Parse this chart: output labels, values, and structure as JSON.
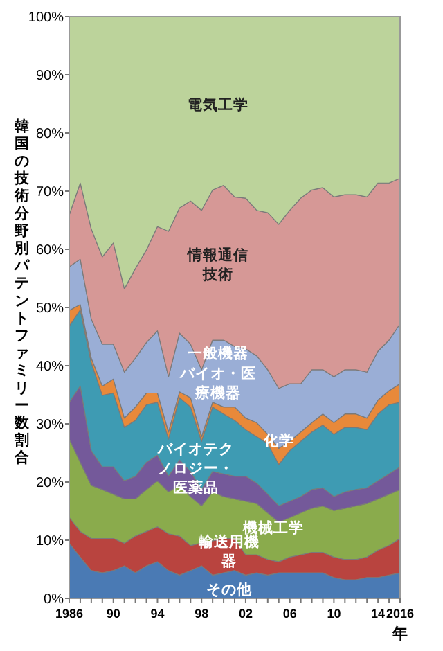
{
  "chart_data": {
    "type": "area",
    "stacked": true,
    "legend": false,
    "ylabel": "韓国の技術分野別パテントファミリー数割合",
    "xlabel": "年",
    "x": [
      1986,
      1987,
      1988,
      1989,
      1990,
      1991,
      1992,
      1993,
      1994,
      1995,
      1996,
      1997,
      1998,
      1999,
      2000,
      2001,
      2002,
      2003,
      2004,
      2005,
      2006,
      2007,
      2008,
      2009,
      2010,
      2011,
      2012,
      2013,
      2014,
      2015,
      2016
    ],
    "xlim": [
      1986,
      2016
    ],
    "xticks": [
      {
        "value": 1986,
        "label": "1986"
      },
      {
        "value": 1987,
        "label": null
      },
      {
        "value": 1988,
        "label": null
      },
      {
        "value": 1989,
        "label": null
      },
      {
        "value": 1990,
        "label": "90"
      },
      {
        "value": 1991,
        "label": null
      },
      {
        "value": 1992,
        "label": null
      },
      {
        "value": 1993,
        "label": null
      },
      {
        "value": 1994,
        "label": "94"
      },
      {
        "value": 1995,
        "label": null
      },
      {
        "value": 1996,
        "label": null
      },
      {
        "value": 1997,
        "label": null
      },
      {
        "value": 1998,
        "label": "98"
      },
      {
        "value": 1999,
        "label": null
      },
      {
        "value": 2000,
        "label": null
      },
      {
        "value": 2001,
        "label": null
      },
      {
        "value": 2002,
        "label": "02"
      },
      {
        "value": 2003,
        "label": null
      },
      {
        "value": 2004,
        "label": null
      },
      {
        "value": 2005,
        "label": null
      },
      {
        "value": 2006,
        "label": "06"
      },
      {
        "value": 2007,
        "label": null
      },
      {
        "value": 2008,
        "label": null
      },
      {
        "value": 2009,
        "label": null
      },
      {
        "value": 2010,
        "label": "10"
      },
      {
        "value": 2011,
        "label": null
      },
      {
        "value": 2012,
        "label": null
      },
      {
        "value": 2013,
        "label": null
      },
      {
        "value": 2014,
        "label": "14"
      },
      {
        "value": 2015,
        "label": null
      },
      {
        "value": 2016,
        "label": "2016"
      }
    ],
    "ylim": [
      0,
      100
    ],
    "yticks": [
      {
        "value": 0,
        "label": "0%"
      },
      {
        "value": 10,
        "label": "10%"
      },
      {
        "value": 20,
        "label": "20%"
      },
      {
        "value": 30,
        "label": "30%"
      },
      {
        "value": 40,
        "label": "40%"
      },
      {
        "value": 50,
        "label": "50%"
      },
      {
        "value": 60,
        "label": "60%"
      },
      {
        "value": 70,
        "label": "70%"
      },
      {
        "value": 80,
        "label": "80%"
      },
      {
        "value": 90,
        "label": "90%"
      },
      {
        "value": 100,
        "label": "100%"
      }
    ],
    "series": [
      {
        "name": "その他",
        "color": "#4a7ab4",
        "values": [
          9.5,
          7.1,
          4.8,
          4.4,
          4.8,
          5.6,
          4.4,
          5.6,
          6.3,
          4.8,
          4.0,
          4.8,
          5.6,
          4.0,
          4.4,
          4.8,
          4.0,
          4.4,
          4.0,
          4.4,
          4.4,
          4.4,
          4.4,
          4.4,
          3.6,
          3.2,
          3.2,
          3.6,
          3.6,
          4.0,
          4.4
        ]
      },
      {
        "name": "輸送用機器",
        "color": "#b9443f",
        "values": [
          4.4,
          4.4,
          5.5,
          5.9,
          5.5,
          3.9,
          6.3,
          5.9,
          6.0,
          6.3,
          6.7,
          4.3,
          3.9,
          5.9,
          5.9,
          5.5,
          3.5,
          3.1,
          2.7,
          1.9,
          2.7,
          3.1,
          3.5,
          3.5,
          3.5,
          3.5,
          3.5,
          3.5,
          4.7,
          5.1,
          5.9
        ]
      },
      {
        "name": "機械工学",
        "color": "#8aab4c",
        "values": [
          13.5,
          11.9,
          9.1,
          8.4,
          7.6,
          7.6,
          6.4,
          7.2,
          7.9,
          7.2,
          8.7,
          8.4,
          6.4,
          8.4,
          7.2,
          6.8,
          9.2,
          8.8,
          8.0,
          6.8,
          6.8,
          7.2,
          7.6,
          8.0,
          8.0,
          8.8,
          9.2,
          9.2,
          8.8,
          8.8,
          8.4
        ]
      },
      {
        "name": "バイオテクノロジー・医薬品",
        "color": "#74599a",
        "values": [
          6.3,
          13.1,
          6.0,
          3.9,
          4.7,
          3.1,
          3.9,
          4.7,
          4.4,
          2.7,
          4.4,
          4.3,
          2.8,
          3.5,
          3.9,
          3.9,
          4.3,
          3.5,
          3.2,
          2.8,
          2.8,
          2.8,
          3.2,
          3.1,
          2.4,
          2.8,
          2.8,
          2.7,
          3.1,
          3.5,
          3.9
        ]
      },
      {
        "name": "化学",
        "color": "#3e9bb3",
        "values": [
          13.1,
          13.1,
          15.1,
          12.3,
          12.7,
          9.2,
          9.6,
          9.9,
          9.1,
          6.4,
          10.7,
          11.1,
          8.3,
          11.1,
          10.3,
          9.6,
          8.0,
          8.0,
          8.7,
          7.1,
          8.7,
          9.5,
          9.9,
          10.8,
          10.7,
          11.1,
          10.7,
          10.0,
          11.5,
          11.9,
          11.1
        ]
      },
      {
        "name": "バイオ・医療機器",
        "color": "#e8893a",
        "values": [
          2.7,
          0.9,
          0.8,
          1.6,
          2.4,
          1.6,
          2.3,
          2.0,
          1.6,
          1.2,
          1.0,
          1.6,
          0.8,
          0.8,
          1.2,
          2.3,
          2.0,
          2.4,
          1.6,
          2.8,
          1.6,
          1.6,
          1.6,
          1.9,
          2.0,
          2.3,
          2.3,
          2.0,
          2.4,
          2.4,
          3.2
        ]
      },
      {
        "name": "一般機器",
        "color": "#9aaed6",
        "values": [
          7.5,
          7.8,
          6.7,
          7.2,
          6.0,
          7.9,
          8.4,
          8.7,
          10.7,
          9.5,
          10.1,
          9.2,
          11.5,
          10.7,
          11.5,
          10.4,
          11.9,
          11.5,
          11.1,
          10.3,
          9.9,
          8.3,
          9.1,
          7.6,
          7.9,
          7.6,
          7.6,
          7.9,
          8.4,
          8.7,
          10.3
        ]
      },
      {
        "name": "情報通信技術",
        "color": "#d69896",
        "values": [
          8.9,
          13.1,
          15.5,
          15.0,
          17.4,
          14.3,
          15.4,
          15.9,
          17.9,
          25.0,
          21.5,
          24.6,
          27.4,
          25.8,
          26.6,
          25.7,
          25.9,
          25.0,
          27.0,
          28.2,
          29.8,
          31.9,
          30.9,
          31.3,
          30.9,
          30.1,
          30.1,
          30.1,
          28.9,
          27.0,
          25.0
        ]
      },
      {
        "name": "電気工学",
        "color": "#bcd39b",
        "values": [
          34.1,
          28.6,
          36.5,
          41.3,
          38.9,
          46.8,
          43.3,
          40.1,
          36.1,
          36.9,
          32.9,
          31.7,
          33.3,
          29.8,
          29.0,
          31.0,
          31.2,
          33.3,
          33.7,
          35.7,
          33.3,
          31.2,
          29.8,
          29.4,
          31.0,
          30.6,
          30.6,
          31.0,
          28.6,
          28.6,
          27.8
        ]
      }
    ]
  }
}
